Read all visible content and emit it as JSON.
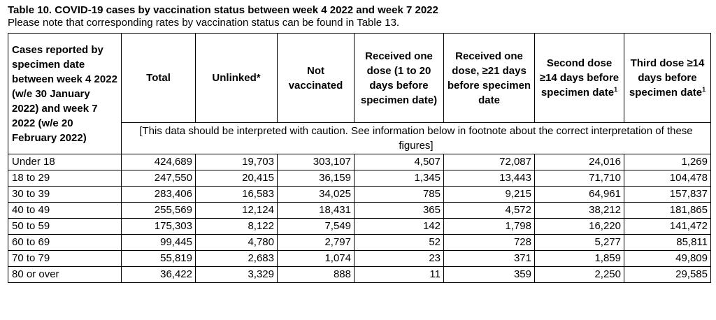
{
  "title": "Table 10. COVID-19 cases by vaccination status between week 4 2022 and week 7 2022",
  "subtitle": "Please note that corresponding rates by vaccination status can be found in Table 13.",
  "header": {
    "first": "Cases reported by specimen date between week 4 2022 (w/e 30 January 2022) and week 7 2022 (w/e 20 February 2022)",
    "total": "Total",
    "unlinked": "Unlinked*",
    "not_vaccinated": "Not vaccinated",
    "one_dose_1_20": "Received one dose (1 to 20 days before specimen date)",
    "one_dose_21": "Received one dose, ≥21 days before specimen date",
    "second_dose": "Second dose ≥14 days before specimen date",
    "second_dose_sup": "1",
    "third_dose": "Third dose ≥14 days before specimen date",
    "third_dose_sup": "1",
    "caution": "[This data should be interpreted with caution. See information below in footnote about the correct interpretation of these figures]"
  },
  "rows": [
    {
      "age": "Under 18",
      "total": "424,689",
      "unlinked": "19,703",
      "not_vaccinated": "303,107",
      "one_dose_1_20": "4,507",
      "one_dose_21": "72,087",
      "second_dose": "24,016",
      "third_dose": "1,269"
    },
    {
      "age": "18 to 29",
      "total": "247,550",
      "unlinked": "20,415",
      "not_vaccinated": "36,159",
      "one_dose_1_20": "1,345",
      "one_dose_21": "13,443",
      "second_dose": "71,710",
      "third_dose": "104,478"
    },
    {
      "age": "30 to 39",
      "total": "283,406",
      "unlinked": "16,583",
      "not_vaccinated": "34,025",
      "one_dose_1_20": "785",
      "one_dose_21": "9,215",
      "second_dose": "64,961",
      "third_dose": "157,837"
    },
    {
      "age": "40 to 49",
      "total": "255,569",
      "unlinked": "12,124",
      "not_vaccinated": "18,431",
      "one_dose_1_20": "365",
      "one_dose_21": "4,572",
      "second_dose": "38,212",
      "third_dose": "181,865"
    },
    {
      "age": "50 to 59",
      "total": "175,303",
      "unlinked": "8,122",
      "not_vaccinated": "7,549",
      "one_dose_1_20": "142",
      "one_dose_21": "1,798",
      "second_dose": "16,220",
      "third_dose": "141,472"
    },
    {
      "age": "60 to 69",
      "total": "99,445",
      "unlinked": "4,780",
      "not_vaccinated": "2,797",
      "one_dose_1_20": "52",
      "one_dose_21": "728",
      "second_dose": "5,277",
      "third_dose": "85,811"
    },
    {
      "age": "70 to 79",
      "total": "55,819",
      "unlinked": "2,683",
      "not_vaccinated": "1,074",
      "one_dose_1_20": "23",
      "one_dose_21": "371",
      "second_dose": "1,859",
      "third_dose": "49,809"
    },
    {
      "age": "80 or over",
      "total": "36,422",
      "unlinked": "3,329",
      "not_vaccinated": "888",
      "one_dose_1_20": "11",
      "one_dose_21": "359",
      "second_dose": "2,250",
      "third_dose": "29,585"
    }
  ]
}
